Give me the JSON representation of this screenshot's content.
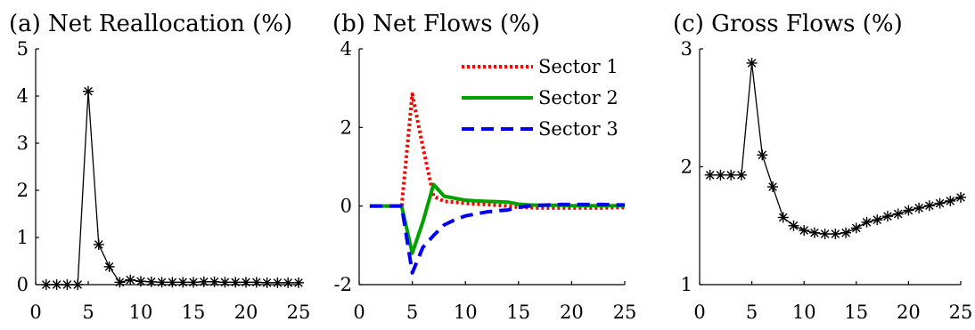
{
  "chart_data": [
    {
      "type": "line",
      "title": "(a) Net Reallocation (%)",
      "xlabel": "",
      "ylabel": "",
      "xlim": [
        0,
        25
      ],
      "ylim": [
        0,
        5
      ],
      "xticks": [
        0,
        5,
        10,
        15,
        20,
        25
      ],
      "yticks": [
        0,
        1,
        2,
        3,
        4,
        5
      ],
      "grid": false,
      "series": [
        {
          "color": "#000000",
          "marker": "asterisk",
          "x": [
            1,
            2,
            3,
            4,
            5,
            6,
            7,
            8,
            9,
            10,
            11,
            12,
            13,
            14,
            15,
            16,
            17,
            18,
            19,
            20,
            21,
            22,
            23,
            24,
            25
          ],
          "y": [
            0,
            0,
            0,
            0,
            4.1,
            0.85,
            0.38,
            0.05,
            0.1,
            0.07,
            0.06,
            0.05,
            0.05,
            0.05,
            0.05,
            0.06,
            0.06,
            0.05,
            0.05,
            0.05,
            0.05,
            0.04,
            0.04,
            0.04,
            0.04
          ]
        }
      ]
    },
    {
      "type": "line",
      "title": "(b) Net Flows (%)",
      "xlabel": "",
      "ylabel": "",
      "xlim": [
        0,
        25
      ],
      "ylim": [
        -2,
        4
      ],
      "xticks": [
        0,
        5,
        10,
        15,
        20,
        25
      ],
      "yticks": [
        -2,
        0,
        2,
        4
      ],
      "grid": false,
      "legend": "top-right",
      "series": [
        {
          "name": "Sector 1",
          "color": "#ff0000",
          "style": "dotted",
          "x": [
            1,
            2,
            3,
            4,
            5,
            6,
            7,
            8,
            9,
            10,
            11,
            12,
            13,
            14,
            15,
            16,
            17,
            18,
            19,
            20,
            21,
            22,
            23,
            24,
            25
          ],
          "y": [
            0,
            0,
            0,
            0,
            2.85,
            1.5,
            0.25,
            0.12,
            0.1,
            0.07,
            0.05,
            0.04,
            0.02,
            0.0,
            -0.03,
            -0.04,
            -0.05,
            -0.05,
            -0.05,
            -0.05,
            -0.05,
            -0.05,
            -0.05,
            -0.04,
            -0.04
          ]
        },
        {
          "name": "Sector 2",
          "color": "#00a000",
          "style": "solid",
          "x": [
            1,
            2,
            3,
            4,
            5,
            6,
            7,
            8,
            9,
            10,
            11,
            12,
            13,
            14,
            15,
            16,
            17,
            18,
            19,
            20,
            21,
            22,
            23,
            24,
            25
          ],
          "y": [
            0,
            0,
            0,
            0,
            -1.2,
            -0.4,
            0.55,
            0.25,
            0.2,
            0.15,
            0.13,
            0.12,
            0.11,
            0.1,
            0.05,
            0.03,
            0.02,
            0.02,
            0.02,
            0.01,
            0.01,
            0.01,
            0.01,
            0.01,
            0.01
          ]
        },
        {
          "name": "Sector 3",
          "color": "#0000ee",
          "style": "dashed",
          "x": [
            1,
            2,
            3,
            4,
            5,
            6,
            7,
            8,
            9,
            10,
            11,
            12,
            13,
            14,
            15,
            16,
            17,
            18,
            19,
            20,
            21,
            22,
            23,
            24,
            25
          ],
          "y": [
            0,
            0,
            0,
            0,
            -1.7,
            -1.05,
            -0.75,
            -0.48,
            -0.35,
            -0.25,
            -0.2,
            -0.15,
            -0.12,
            -0.1,
            -0.03,
            0.0,
            0.02,
            0.03,
            0.04,
            0.04,
            0.04,
            0.04,
            0.04,
            0.03,
            0.03
          ]
        }
      ]
    },
    {
      "type": "line",
      "title": "(c) Gross Flows (%)",
      "xlabel": "",
      "ylabel": "",
      "xlim": [
        0,
        25
      ],
      "ylim": [
        1,
        3
      ],
      "xticks": [
        0,
        5,
        10,
        15,
        20,
        25
      ],
      "yticks": [
        1,
        2,
        3
      ],
      "grid": false,
      "series": [
        {
          "color": "#000000",
          "marker": "asterisk",
          "x": [
            1,
            2,
            3,
            4,
            5,
            6,
            7,
            8,
            9,
            10,
            11,
            12,
            13,
            14,
            15,
            16,
            17,
            18,
            19,
            20,
            21,
            22,
            23,
            24,
            25
          ],
          "y": [
            1.93,
            1.93,
            1.93,
            1.93,
            2.88,
            2.1,
            1.83,
            1.57,
            1.5,
            1.46,
            1.44,
            1.43,
            1.43,
            1.44,
            1.48,
            1.53,
            1.55,
            1.58,
            1.6,
            1.63,
            1.65,
            1.67,
            1.69,
            1.71,
            1.74
          ]
        }
      ]
    }
  ]
}
